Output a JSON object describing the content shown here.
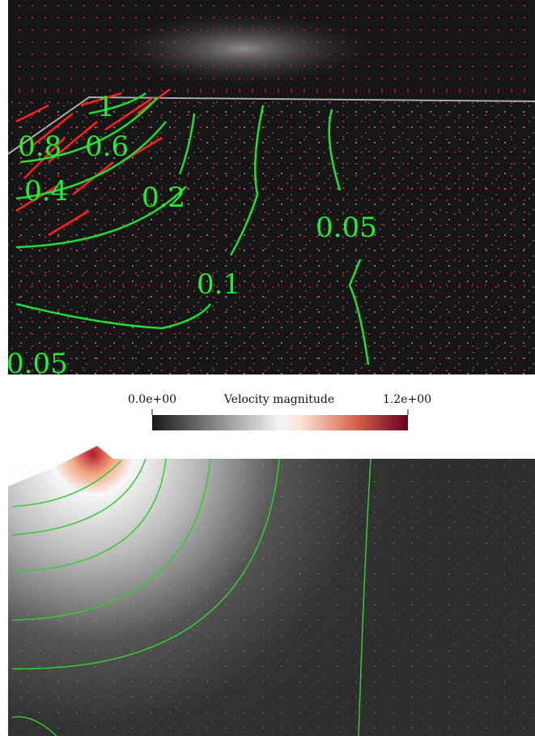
{
  "top_panel": {
    "contour_labels": [
      "1",
      "0.8",
      "0.6",
      "0.4",
      "0.2",
      "0.05",
      "0.1",
      "0.05"
    ]
  },
  "colorbar": {
    "min_label": "0.0e+00",
    "title": "Velocity magnitude",
    "max_label": "1.2e+00"
  }
}
